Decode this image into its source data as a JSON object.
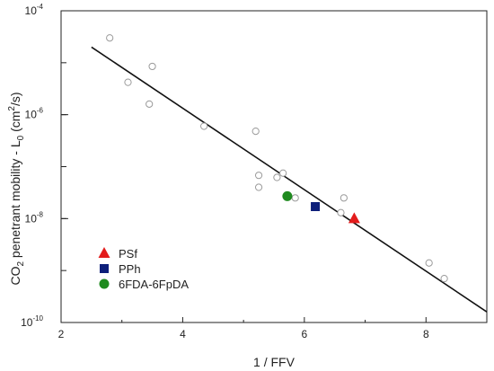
{
  "chart_data": {
    "type": "scatter",
    "xlabel": "1 / FFV",
    "ylabel_parts": {
      "prefix": "CO",
      "sub": "2",
      "mid": " penetrant mobility - L",
      "sub2": "0",
      "unit_open": " (cm",
      "sup": "2",
      "unit_close": "/s)"
    },
    "xlim": [
      2,
      9
    ],
    "ylim": [
      1e-10,
      0.0001
    ],
    "y_scale": "log",
    "x_ticks": [
      2,
      4,
      6,
      8
    ],
    "x_tick_labels": [
      "2",
      "4",
      "6",
      "8"
    ],
    "y_ticks": [
      1e-10,
      1e-08,
      1e-06,
      0.0001
    ],
    "y_tick_labels": [
      {
        "base": "10",
        "exp": "-10"
      },
      {
        "base": "10",
        "exp": "-8"
      },
      {
        "base": "10",
        "exp": "-6"
      },
      {
        "base": "10",
        "exp": "-4"
      }
    ],
    "fit_line": {
      "x": [
        2.5,
        9.0
      ],
      "y": [
        2e-05,
        1.6e-10
      ]
    },
    "open_points": {
      "color": "#9a9a9a",
      "x": [
        2.8,
        3.1,
        3.45,
        3.5,
        4.35,
        5.2,
        5.25,
        5.25,
        5.55,
        5.65,
        5.85,
        6.6,
        6.65,
        8.05,
        8.3
      ],
      "y": [
        3e-05,
        4.2e-06,
        1.6e-06,
        8.5e-06,
        6e-07,
        4.8e-07,
        6.8e-08,
        4e-08,
        6.2e-08,
        7.5e-08,
        2.5e-08,
        1.3e-08,
        2.5e-08,
        1.4e-09,
        7e-10
      ]
    },
    "series": [
      {
        "name": "PSf",
        "marker": "triangle",
        "color": "#e31c1c",
        "x": [
          6.82
        ],
        "y": [
          1e-08
        ]
      },
      {
        "name": "PPh",
        "marker": "square",
        "color": "#0d1f7a",
        "x": [
          6.18
        ],
        "y": [
          1.7e-08
        ]
      },
      {
        "name": "6FDA-6FpDA",
        "marker": "circle",
        "color": "#1f8a1f",
        "x": [
          5.72
        ],
        "y": [
          2.7e-08
        ]
      }
    ],
    "legend_position": "bottom-left",
    "grid": false
  }
}
